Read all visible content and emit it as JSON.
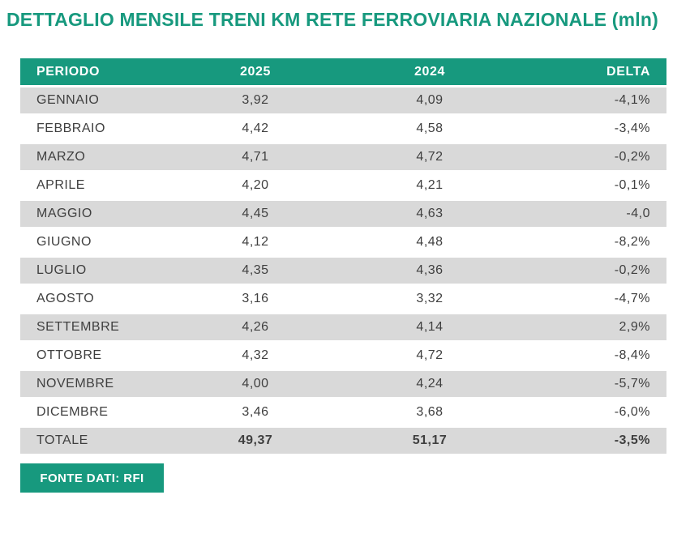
{
  "colors": {
    "accent": "#17997E",
    "row_alt": "#D9D9D9",
    "text_dark": "#3F3F3F",
    "header_text": "#FFFFFF"
  },
  "title": "DETTAGLIO MENSILE TRENI KM RETE FERROVIARIA NAZIONALE (mln)",
  "table": {
    "columns": [
      "PERIODO",
      "2025",
      "2024",
      "DELTA"
    ],
    "rows": [
      {
        "periodo": "GENNAIO",
        "y2025": "3,92",
        "y2024": "4,09",
        "delta": "-4,1%"
      },
      {
        "periodo": "FEBBRAIO",
        "y2025": "4,42",
        "y2024": "4,58",
        "delta": "-3,4%"
      },
      {
        "periodo": "MARZO",
        "y2025": "4,71",
        "y2024": "4,72",
        "delta": "-0,2%"
      },
      {
        "periodo": "APRILE",
        "y2025": "4,20",
        "y2024": "4,21",
        "delta": "-0,1%"
      },
      {
        "periodo": "MAGGIO",
        "y2025": "4,45",
        "y2024": "4,63",
        "delta": "-4,0"
      },
      {
        "periodo": "GIUGNO",
        "y2025": "4,12",
        "y2024": "4,48",
        "delta": "-8,2%"
      },
      {
        "periodo": "LUGLIO",
        "y2025": "4,35",
        "y2024": "4,36",
        "delta": "-0,2%"
      },
      {
        "periodo": "AGOSTO",
        "y2025": "3,16",
        "y2024": "3,32",
        "delta": "-4,7%"
      },
      {
        "periodo": "SETTEMBRE",
        "y2025": "4,26",
        "y2024": "4,14",
        "delta": "2,9%"
      },
      {
        "periodo": "OTTOBRE",
        "y2025": "4,32",
        "y2024": "4,72",
        "delta": "-8,4%"
      },
      {
        "periodo": "NOVEMBRE",
        "y2025": "4,00",
        "y2024": "4,24",
        "delta": "-5,7%"
      },
      {
        "periodo": "DICEMBRE",
        "y2025": "3,46",
        "y2024": "3,68",
        "delta": "-6,0%"
      }
    ],
    "total": {
      "periodo": "TOTALE",
      "y2025": "49,37",
      "y2024": "51,17",
      "delta": "-3,5%"
    }
  },
  "footer": {
    "source_label": "FONTE DATI: RFI"
  },
  "chart_data": {
    "type": "table",
    "title": "DETTAGLIO MENSILE TRENI KM RETE FERROVIARIA NAZIONALE (mln)",
    "categories": [
      "GENNAIO",
      "FEBBRAIO",
      "MARZO",
      "APRILE",
      "MAGGIO",
      "GIUGNO",
      "LUGLIO",
      "AGOSTO",
      "SETTEMBRE",
      "OTTOBRE",
      "NOVEMBRE",
      "DICEMBRE",
      "TOTALE"
    ],
    "series": [
      {
        "name": "2025",
        "values": [
          3.92,
          4.42,
          4.71,
          4.2,
          4.45,
          4.12,
          4.35,
          3.16,
          4.26,
          4.32,
          4.0,
          3.46,
          49.37
        ]
      },
      {
        "name": "2024",
        "values": [
          4.09,
          4.58,
          4.72,
          4.21,
          4.63,
          4.48,
          4.36,
          3.32,
          4.14,
          4.72,
          4.24,
          3.68,
          51.17
        ]
      },
      {
        "name": "DELTA",
        "values": [
          "-4,1%",
          "-3,4%",
          "-0,2%",
          "-0,1%",
          "-4,0",
          "-8,2%",
          "-0,2%",
          "-4,7%",
          "2,9%",
          "-8,4%",
          "-5,7%",
          "-6,0%",
          "-3,5%"
        ]
      }
    ],
    "source": "FONTE DATI: RFI"
  }
}
